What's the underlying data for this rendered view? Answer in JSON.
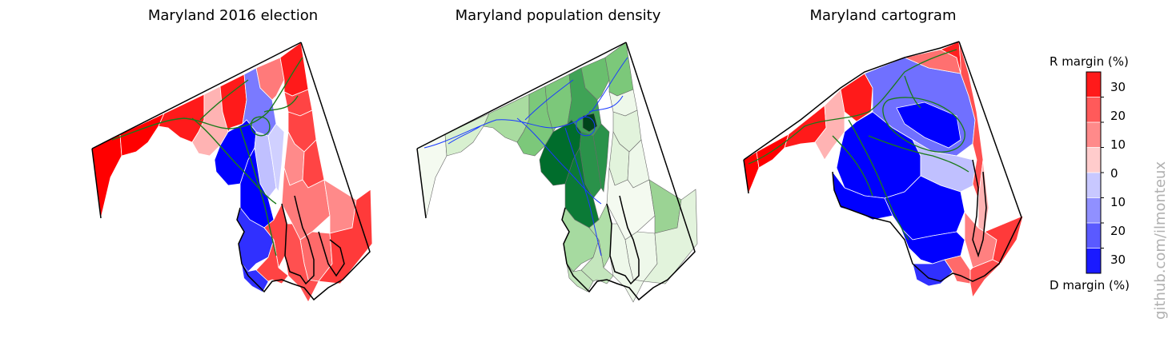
{
  "titles": {
    "election": "Maryland 2016 election",
    "density": "Maryland population density",
    "cartogram": "Maryland cartogram"
  },
  "colorbar": {
    "top_label": "R margin (%)",
    "bottom_label": "D margin (%)",
    "ticks": [
      "30",
      "20",
      "10",
      "0",
      "10",
      "20",
      "30"
    ],
    "bins": [
      "#ff1a1a",
      "#ff5a5a",
      "#ff8a8a",
      "#ffcccc",
      "#c8c8ff",
      "#9090ff",
      "#5a5aff",
      "#1a1aff"
    ]
  },
  "watermark": "github.com/ilmonteux",
  "colors": {
    "highway": "#1a7a1a",
    "road_blue": "#1a3aff",
    "outline": "#000000",
    "density_dark": "#00441b",
    "density_light": "#f5fbf2"
  }
}
